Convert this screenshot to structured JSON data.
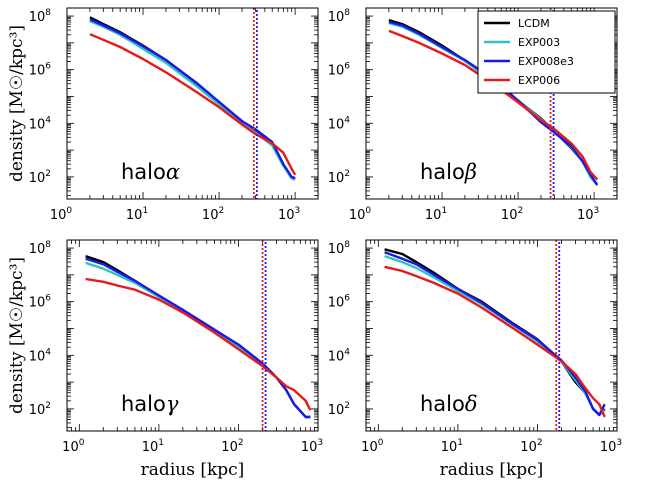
{
  "chart_data": [
    {
      "type": "line",
      "title": "halo",
      "greek": "α",
      "xscale": "log",
      "yscale": "log",
      "xlim": [
        1,
        2000
      ],
      "ylim": [
        15,
        200000000
      ],
      "xlabel": "",
      "ylabel": "density [M☉/kpc³]",
      "vline": 300,
      "series": [
        {
          "name": "LCDM",
          "x": [
            2,
            3,
            5,
            10,
            20,
            50,
            100,
            200,
            300,
            500,
            700,
            900,
            1000
          ],
          "y": [
            90000000,
            50000000,
            25000000,
            8000000,
            2300000,
            300000,
            60000,
            12000,
            5000,
            1600,
            280,
            90,
            80
          ]
        },
        {
          "name": "EXP003",
          "x": [
            2,
            3,
            5,
            10,
            20,
            50,
            100,
            200,
            300,
            500,
            700,
            900,
            1000
          ],
          "y": [
            65000000,
            40000000,
            20000000,
            6000000,
            1800000,
            250000,
            50000,
            10000,
            4500,
            1500,
            260,
            90,
            80
          ]
        },
        {
          "name": "EXP008e3",
          "x": [
            2,
            3,
            5,
            10,
            20,
            50,
            100,
            200,
            300,
            500,
            700,
            900,
            1000
          ],
          "y": [
            75000000,
            45000000,
            23000000,
            7500000,
            2300000,
            330000,
            63000,
            12000,
            6000,
            2000,
            300,
            100,
            90
          ]
        },
        {
          "name": "EXP006",
          "x": [
            2,
            3,
            5,
            10,
            20,
            50,
            100,
            200,
            300,
            500,
            700,
            900,
            1000
          ],
          "y": [
            21000000,
            13000000,
            7000000,
            2500000,
            800000,
            150000,
            40000,
            9000,
            4000,
            1800,
            800,
            200,
            120
          ]
        }
      ]
    },
    {
      "type": "line",
      "title": "halo",
      "greek": "β",
      "xscale": "log",
      "yscale": "log",
      "xlim": [
        1,
        2000
      ],
      "ylim": [
        15,
        200000000
      ],
      "xlabel": "",
      "ylabel": "",
      "vline": 280,
      "series": [
        {
          "name": "LCDM",
          "x": [
            2,
            3,
            5,
            10,
            20,
            50,
            100,
            200,
            300,
            500,
            700,
            900,
            1100
          ],
          "y": [
            70000000,
            50000000,
            25000000,
            8000000,
            2200000,
            300000,
            70000,
            15000,
            5000,
            1200,
            400,
            100,
            50
          ]
        },
        {
          "name": "EXP003",
          "x": [
            2,
            3,
            5,
            10,
            20,
            50,
            100,
            200,
            300,
            500,
            700,
            900,
            1100
          ],
          "y": [
            55000000,
            40000000,
            20000000,
            6500000,
            2100000,
            320000,
            70000,
            14000,
            5000,
            1300,
            400,
            100,
            50
          ]
        },
        {
          "name": "EXP008e3",
          "x": [
            2,
            3,
            5,
            10,
            20,
            50,
            100,
            200,
            300,
            500,
            700,
            900,
            1100
          ],
          "y": [
            60000000,
            45000000,
            22000000,
            7000000,
            2300000,
            400000,
            70000,
            11000,
            4500,
            1400,
            400,
            120,
            50
          ]
        },
        {
          "name": "EXP006",
          "x": [
            2,
            3,
            5,
            10,
            20,
            50,
            100,
            200,
            300,
            500,
            700,
            900,
            1100
          ],
          "y": [
            28000000,
            18000000,
            10000000,
            4000000,
            1500000,
            260000,
            60000,
            13000,
            6000,
            1800,
            600,
            150,
            80
          ]
        }
      ]
    },
    {
      "type": "line",
      "title": "halo",
      "greek": "γ",
      "xscale": "log",
      "yscale": "log",
      "xlim": [
        0.7,
        1000
      ],
      "ylim": [
        15,
        200000000
      ],
      "xlabel": "radius [kpc]",
      "ylabel": "density [M☉/kpc³]",
      "vline": 210,
      "series": [
        {
          "name": "LCDM",
          "x": [
            1.2,
            2,
            3,
            5,
            10,
            20,
            50,
            100,
            200,
            300,
            400,
            500,
            700,
            800
          ],
          "y": [
            50000000,
            30000000,
            15000000,
            6000000,
            1600000,
            450000,
            80000,
            25000,
            5000,
            1500,
            500,
            150,
            50,
            50
          ]
        },
        {
          "name": "EXP003",
          "x": [
            1.2,
            2,
            3,
            5,
            10,
            20,
            50,
            100,
            200,
            300,
            400,
            500,
            700,
            800
          ],
          "y": [
            28000000,
            17000000,
            10000000,
            5000000,
            1500000,
            430000,
            75000,
            22000,
            5000,
            1500,
            500,
            150,
            50,
            50
          ]
        },
        {
          "name": "EXP008e3",
          "x": [
            1.2,
            2,
            3,
            5,
            10,
            20,
            50,
            100,
            200,
            300,
            400,
            500,
            700,
            800
          ],
          "y": [
            40000000,
            25000000,
            13000000,
            6000000,
            1700000,
            500000,
            90000,
            25000,
            5000,
            1500,
            500,
            150,
            50,
            50
          ]
        },
        {
          "name": "EXP006",
          "x": [
            1.2,
            2,
            3,
            5,
            10,
            20,
            50,
            100,
            200,
            300,
            400,
            500,
            700,
            800
          ],
          "y": [
            7000000,
            5500000,
            4000000,
            2800000,
            1200000,
            400000,
            70000,
            17000,
            4000,
            1500,
            700,
            500,
            200,
            90
          ]
        }
      ]
    },
    {
      "type": "line",
      "title": "halo",
      "greek": "δ",
      "xscale": "log",
      "yscale": "log",
      "xlim": [
        0.7,
        1000
      ],
      "ylim": [
        15,
        200000000
      ],
      "xlabel": "radius [kpc]",
      "ylabel": "",
      "vline": 180,
      "series": [
        {
          "name": "LCDM",
          "x": [
            1.2,
            2,
            3,
            5,
            10,
            20,
            50,
            100,
            200,
            300,
            400,
            500,
            600,
            700
          ],
          "y": [
            90000000,
            60000000,
            30000000,
            12000000,
            3000000,
            1000000,
            150000,
            40000,
            6000,
            1000,
            400,
            100,
            60,
            100
          ]
        },
        {
          "name": "EXP003",
          "x": [
            1.2,
            2,
            3,
            5,
            10,
            20,
            50,
            100,
            200,
            300,
            400,
            500,
            600,
            700
          ],
          "y": [
            50000000,
            30000000,
            18000000,
            8000000,
            2500000,
            800000,
            130000,
            33000,
            6000,
            1200,
            400,
            100,
            60,
            90
          ]
        },
        {
          "name": "EXP008e3",
          "x": [
            1.2,
            2,
            3,
            5,
            10,
            20,
            50,
            100,
            200,
            300,
            400,
            500,
            600,
            700
          ],
          "y": [
            70000000,
            40000000,
            25000000,
            10000000,
            3000000,
            900000,
            140000,
            38000,
            6500,
            1500,
            450,
            100,
            60,
            150
          ]
        },
        {
          "name": "EXP006",
          "x": [
            1.2,
            2,
            3,
            5,
            10,
            20,
            50,
            100,
            200,
            300,
            400,
            500,
            600,
            700
          ],
          "y": [
            20000000,
            14000000,
            9000000,
            5000000,
            2000000,
            600000,
            100000,
            25000,
            6000,
            2000,
            600,
            250,
            150,
            50
          ]
        }
      ]
    }
  ],
  "legend": {
    "location": "top-right of top-right panel",
    "items": [
      "LCDM",
      "EXP003",
      "EXP008e3",
      "EXP006"
    ]
  },
  "colors": {
    "LCDM": "#000000",
    "EXP003": "#33c2c2",
    "EXP008e3": "#1a1ae6",
    "EXP006": "#e61a1a"
  },
  "tick_labels": {
    "x_top": [
      {
        "base": "10",
        "exp": "0"
      },
      {
        "base": "10",
        "exp": "1"
      },
      {
        "base": "10",
        "exp": "2"
      },
      {
        "base": "10",
        "exp": "3"
      }
    ],
    "x_bottom": [
      {
        "base": "10",
        "exp": "0"
      },
      {
        "base": "10",
        "exp": "1"
      },
      {
        "base": "10",
        "exp": "2"
      },
      {
        "base": "10",
        "exp": "3"
      }
    ],
    "y": [
      {
        "base": "10",
        "exp": "2"
      },
      {
        "base": "10",
        "exp": "4"
      },
      {
        "base": "10",
        "exp": "6"
      },
      {
        "base": "10",
        "exp": "8"
      }
    ]
  }
}
